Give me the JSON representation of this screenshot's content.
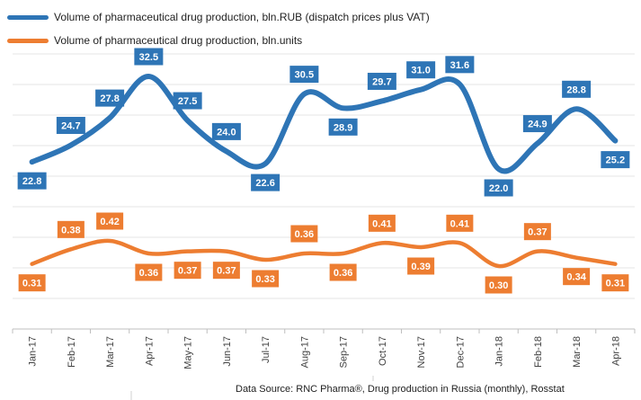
{
  "chart_data": {
    "type": "line",
    "categories": [
      "Jan-17",
      "Feb-17",
      "Mar-17",
      "Apr-17",
      "May-17",
      "Jun-17",
      "Jul-17",
      "Aug-17",
      "Sep-17",
      "Oct-17",
      "Nov-17",
      "Dec-17",
      "Jan-18",
      "Feb-18",
      "Mar-18",
      "Apr-18"
    ],
    "series": [
      {
        "name": "Volume of pharmaceutical drug production, bln.RUB (dispatch prices plus VAT)",
        "color": "#2e75b6",
        "values": [
          22.8,
          24.7,
          27.8,
          32.5,
          27.5,
          24.0,
          22.6,
          30.5,
          28.9,
          29.7,
          31.0,
          31.6,
          22.0,
          24.9,
          28.8,
          25.2
        ],
        "labels": [
          "22.8",
          "24.7",
          "27.8",
          "32.5",
          "27.5",
          "24.0",
          "22.6",
          "30.5",
          "28.9",
          "29.7",
          "31.0",
          "31.6",
          "22.0",
          "24.9",
          "28.8",
          "25.2"
        ]
      },
      {
        "name": "Volume of pharmaceutical drug production, bln.units",
        "color": "#ed7d31",
        "values": [
          0.31,
          0.38,
          0.42,
          0.36,
          0.37,
          0.37,
          0.33,
          0.36,
          0.36,
          0.41,
          0.39,
          0.41,
          0.3,
          0.37,
          0.34,
          0.31
        ],
        "labels": [
          "0.31",
          "0.38",
          "0.42",
          "0.36",
          "0.37",
          "0.37",
          "0.33",
          "0.36",
          "0.36",
          "0.41",
          "0.39",
          "0.41",
          "0.30",
          "0.37",
          "0.34",
          "0.31"
        ]
      }
    ],
    "grid": true,
    "legend_position": "top-left"
  },
  "source": "Data Source: RNC Pharma®, Drug production in Russia (monthly), Rosstat"
}
